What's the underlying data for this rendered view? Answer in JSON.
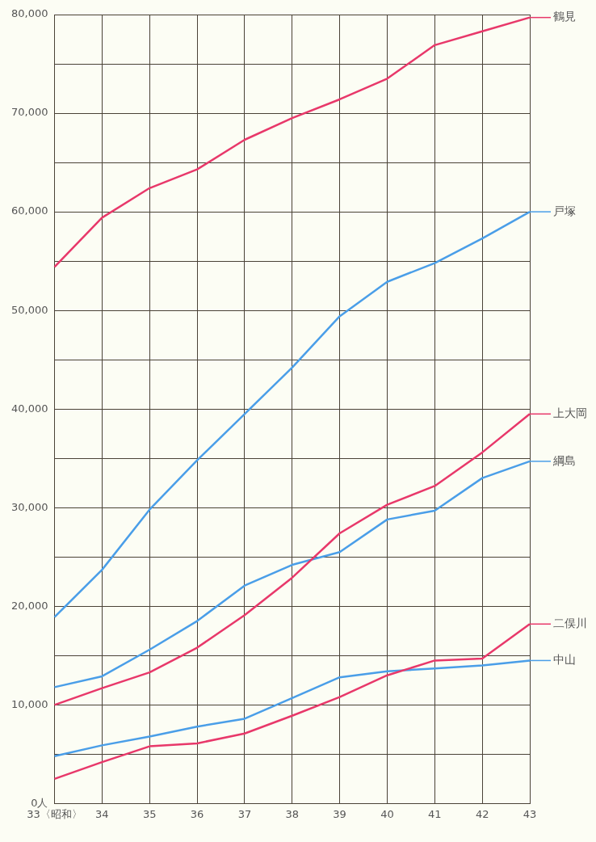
{
  "chart_data": {
    "type": "line",
    "categories": [
      "33〈昭和〉",
      "34",
      "35",
      "36",
      "37",
      "38",
      "39",
      "40",
      "41",
      "42",
      "43"
    ],
    "series": [
      {
        "name": "鶴見",
        "color": "#e8386a",
        "values": [
          54400,
          59400,
          62400,
          64300,
          67300,
          69500,
          71400,
          73500,
          76900,
          78300,
          79700
        ]
      },
      {
        "name": "戸塚",
        "color": "#4a9ee8",
        "values": [
          18900,
          23700,
          29800,
          34800,
          39500,
          44200,
          49400,
          52900,
          54800,
          57300,
          60000
        ]
      },
      {
        "name": "上大岡",
        "color": "#e8386a",
        "values": [
          10000,
          11700,
          13300,
          15800,
          19100,
          22900,
          27400,
          30300,
          32200,
          35600,
          39500
        ]
      },
      {
        "name": "綱島",
        "color": "#4a9ee8",
        "values": [
          11800,
          12900,
          15600,
          18500,
          22100,
          24200,
          25500,
          28800,
          29700,
          33000,
          34700
        ]
      },
      {
        "name": "二俣川",
        "color": "#e8386a",
        "values": [
          2500,
          4200,
          5800,
          6100,
          7100,
          8900,
          10800,
          13000,
          14500,
          14700,
          18200
        ]
      },
      {
        "name": "中山",
        "color": "#4a9ee8",
        "values": [
          4800,
          5900,
          6800,
          7800,
          8600,
          10700,
          12800,
          13400,
          13700,
          14000,
          14500
        ]
      }
    ],
    "ylim": [
      0,
      80000
    ],
    "yticks": [
      {
        "value": 0,
        "label": "0人"
      },
      {
        "value": 5000,
        "label": null
      },
      {
        "value": 10000,
        "label": "10,000"
      },
      {
        "value": 15000,
        "label": null
      },
      {
        "value": 20000,
        "label": "20,000"
      },
      {
        "value": 25000,
        "label": null
      },
      {
        "value": 30000,
        "label": "30,000"
      },
      {
        "value": 35000,
        "label": null
      },
      {
        "value": 40000,
        "label": "40,000"
      },
      {
        "value": 45000,
        "label": null
      },
      {
        "value": 50000,
        "label": "50,000"
      },
      {
        "value": 55000,
        "label": null
      },
      {
        "value": 60000,
        "label": "60,000"
      },
      {
        "value": 65000,
        "label": null
      },
      {
        "value": 70000,
        "label": "70,000"
      },
      {
        "value": 75000,
        "label": null
      },
      {
        "value": 80000,
        "label": "80,000"
      }
    ],
    "grid": true,
    "legend": "right"
  }
}
